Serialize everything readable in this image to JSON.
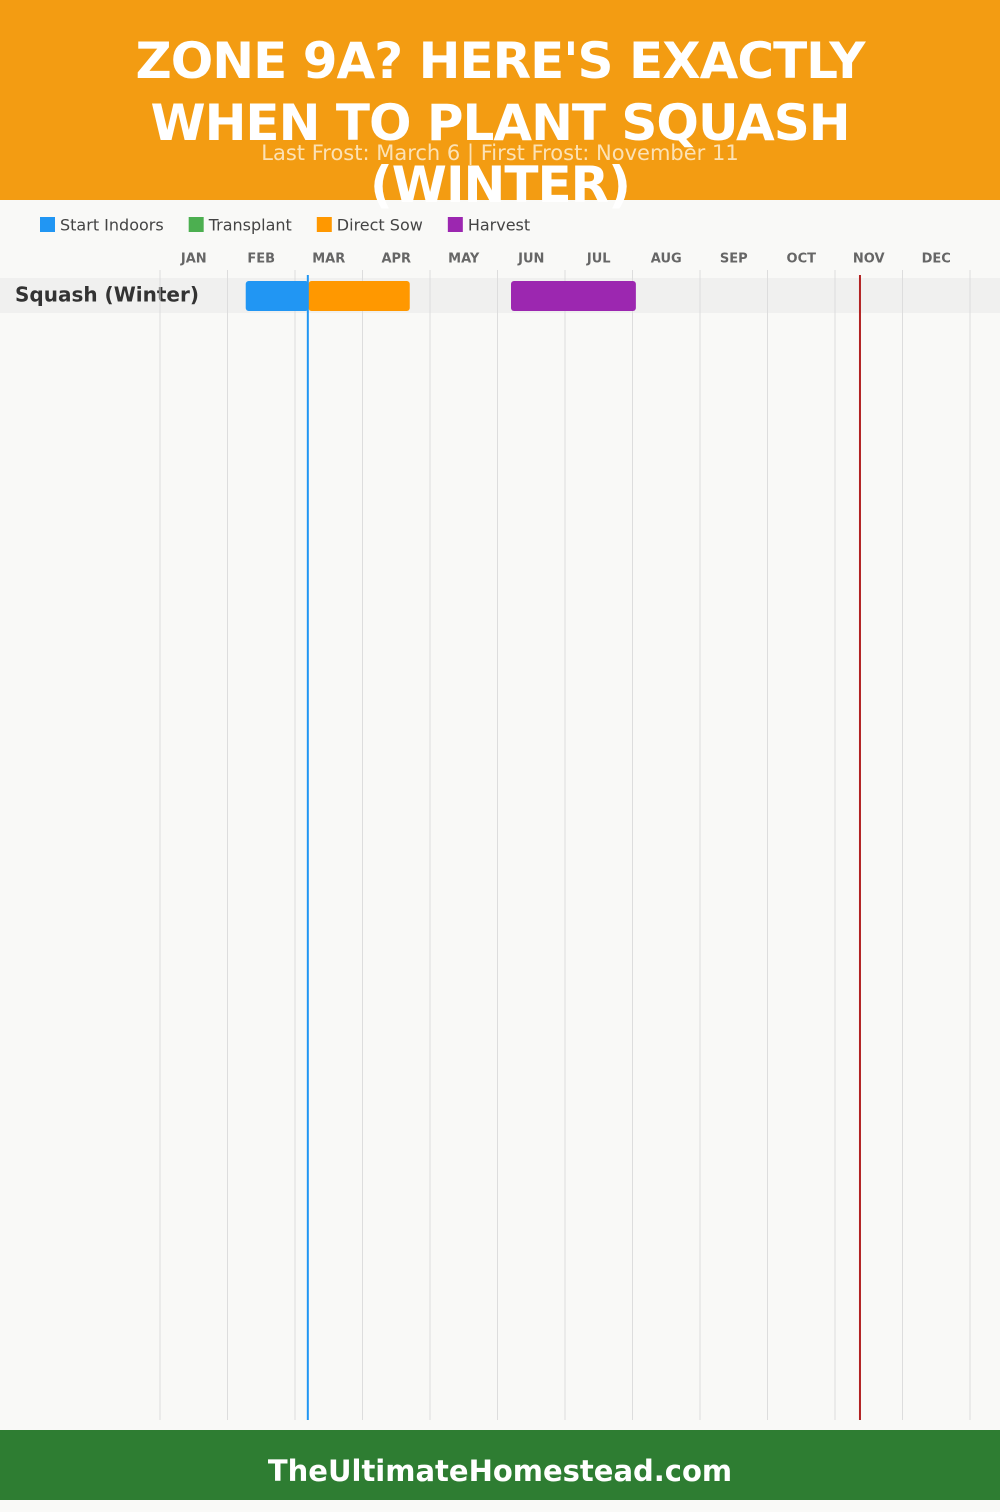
{
  "chart_data": {
    "type": "gantt",
    "title": "ZONE 9A? HERE'S EXACTLY WHEN TO PLANT SQUASH (WINTER)",
    "subtitle": "Last Frost: March 6 | First Frost: November 11",
    "tasks": [
      "Squash (Winter)"
    ],
    "xlim": [
      0,
      12
    ],
    "xticks": [
      {
        "value": 0.5,
        "label": "JAN"
      },
      {
        "value": 1.5,
        "label": "FEB"
      },
      {
        "value": 2.5,
        "label": "MAR"
      },
      {
        "value": 3.5,
        "label": "APR"
      },
      {
        "value": 4.5,
        "label": "MAY"
      },
      {
        "value": 5.5,
        "label": "JUN"
      },
      {
        "value": 6.5,
        "label": "JUL"
      },
      {
        "value": 7.5,
        "label": "AUG"
      },
      {
        "value": 8.5,
        "label": "SEP"
      },
      {
        "value": 9.5,
        "label": "OCT"
      },
      {
        "value": 10.5,
        "label": "NOV"
      },
      {
        "value": 11.5,
        "label": "DEC"
      }
    ],
    "series": [
      {
        "name": "Start Indoors",
        "color": "#2196f3",
        "ranges": [
          [
            1.27,
            2.2
          ]
        ]
      },
      {
        "name": "Transplant",
        "color": "#4caf50",
        "ranges": []
      },
      {
        "name": "Direct Sow",
        "color": "#ff9800",
        "ranges": [
          [
            2.2,
            3.7
          ]
        ]
      },
      {
        "name": "Harvest",
        "color": "#9c27b0",
        "ranges": [
          [
            5.2,
            7.05
          ]
        ]
      }
    ],
    "markers": [
      {
        "value": 2.19,
        "color": "#2196f3"
      },
      {
        "value": 10.37,
        "color": "#b22222"
      }
    ],
    "grid": true
  },
  "footer": "TheUltimateHomestead.com"
}
